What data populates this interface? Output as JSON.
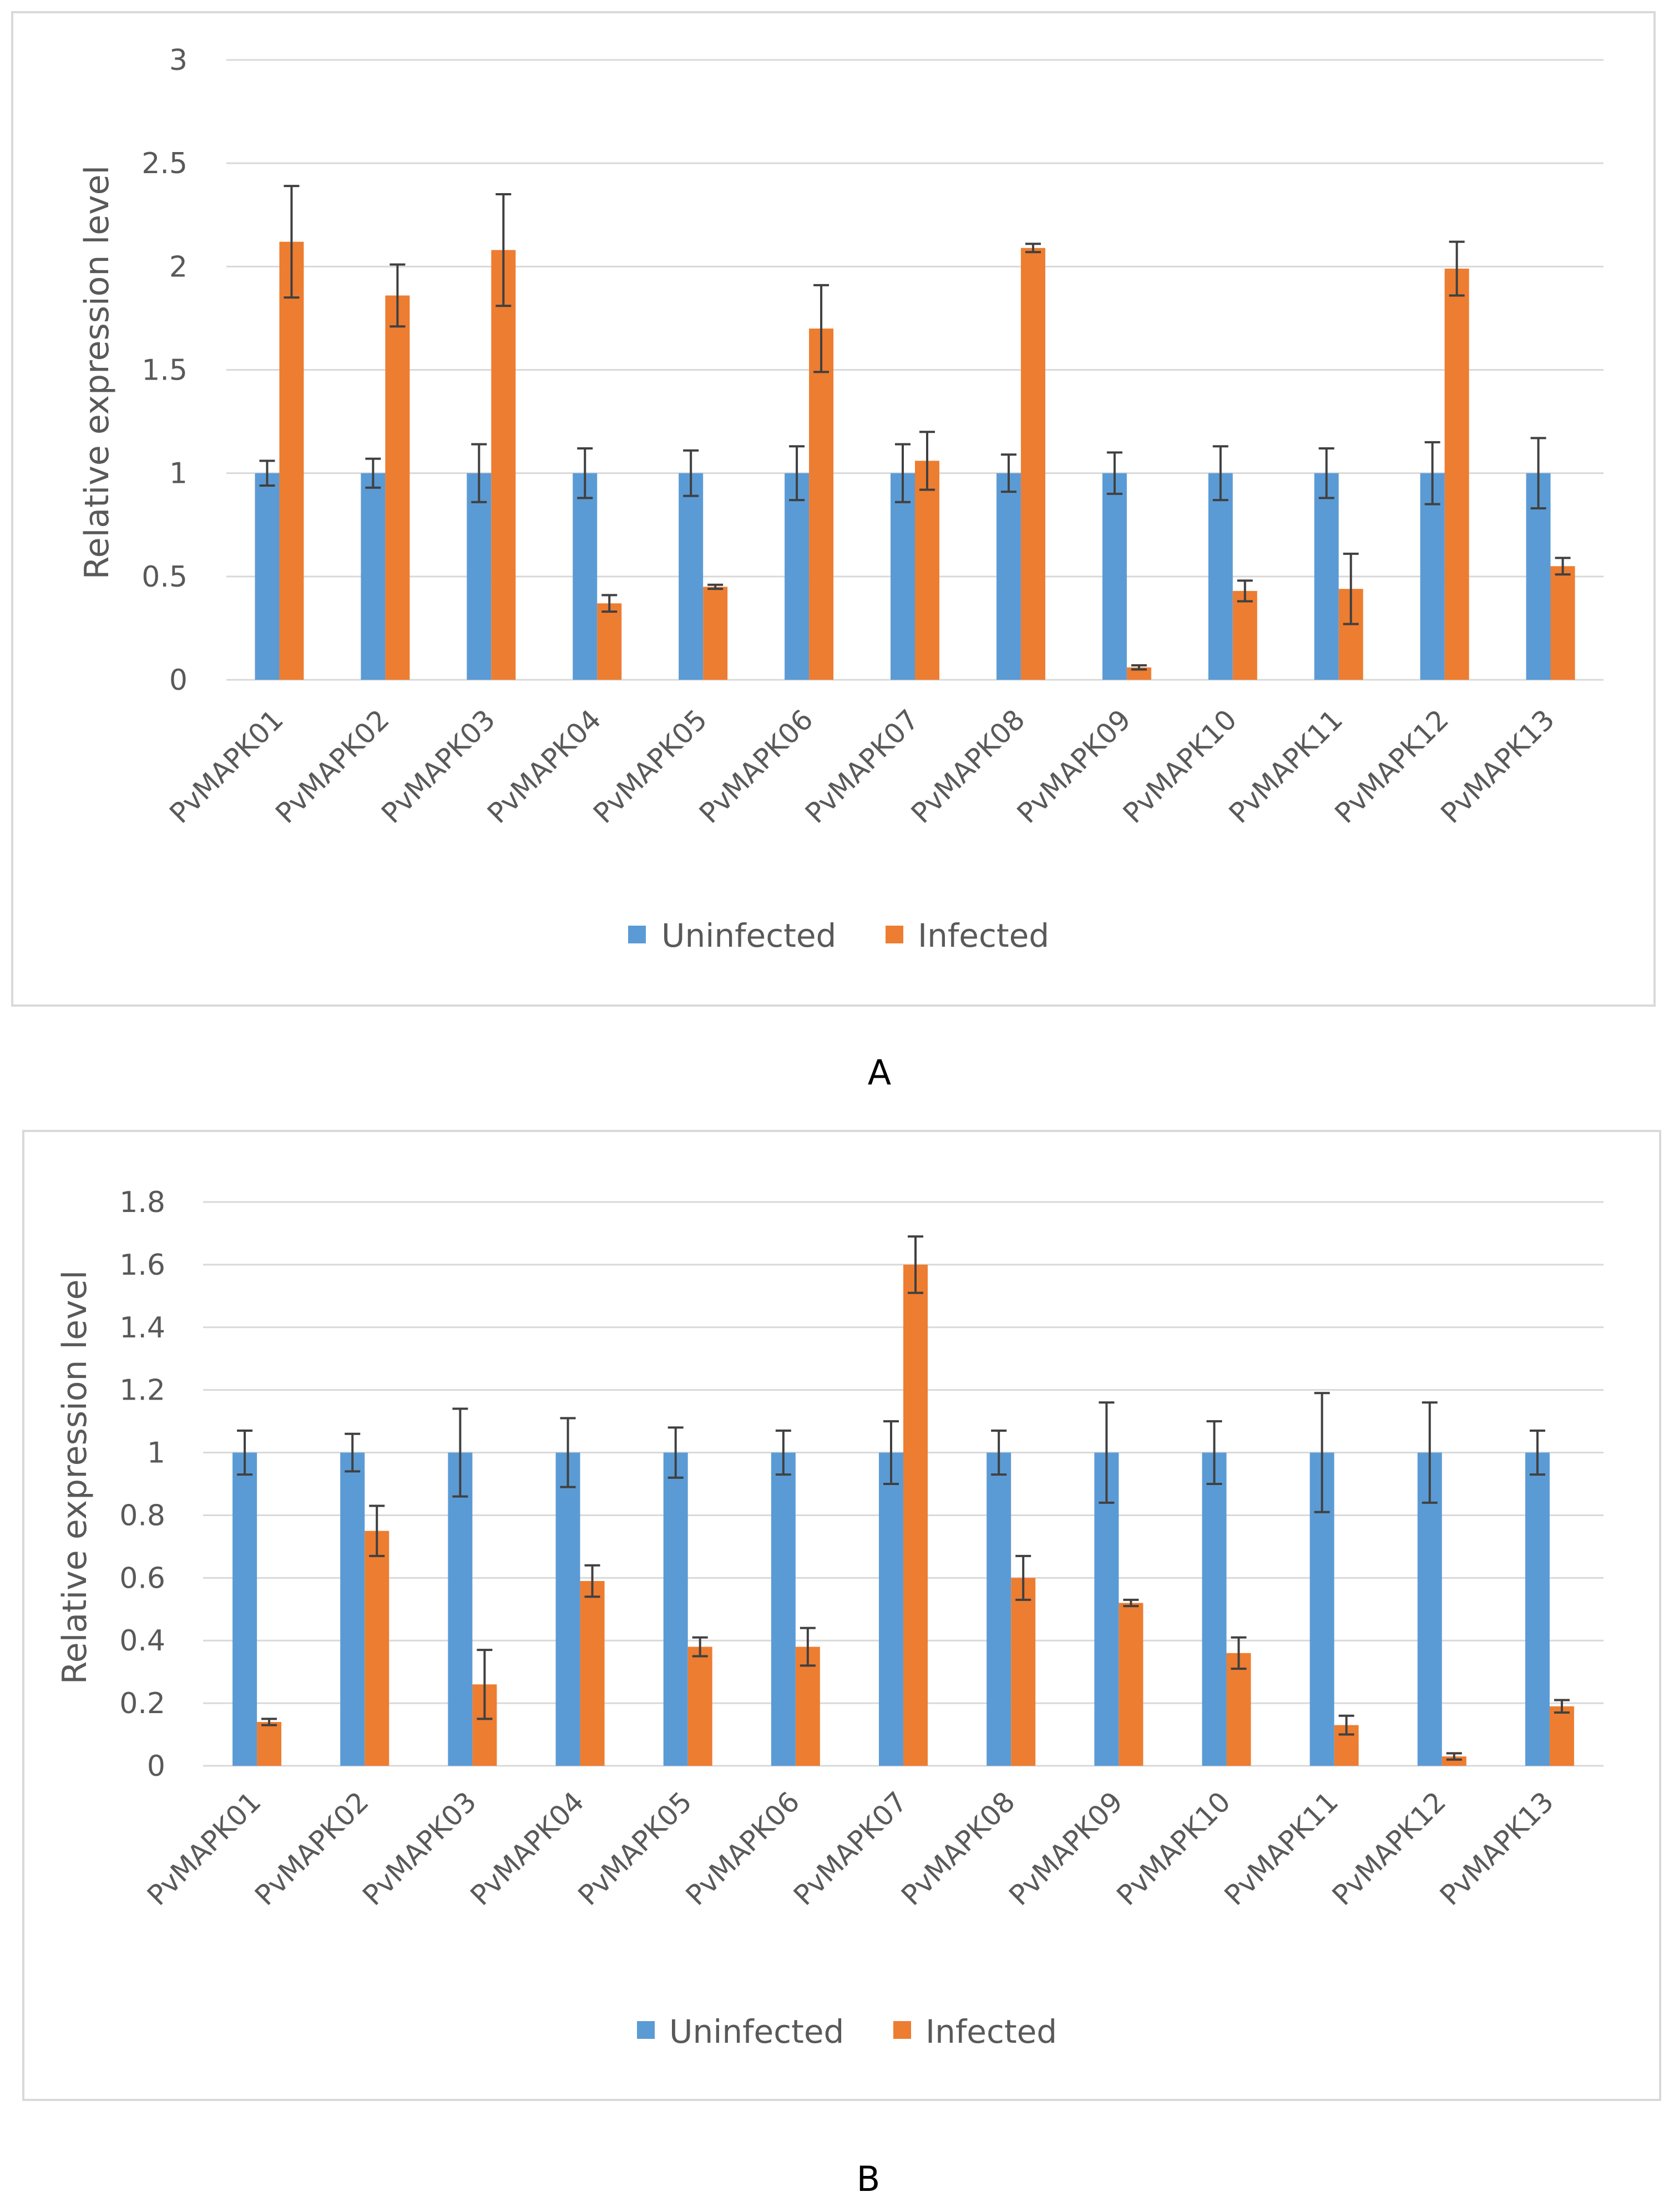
{
  "chart_data": [
    {
      "panel": "A",
      "type": "bar",
      "ylabel": "Relative expression level",
      "xlabel": "",
      "ylim": [
        0,
        3
      ],
      "yticks": [
        "0",
        "0.5",
        "1",
        "1.5",
        "2",
        "2.5",
        "3"
      ],
      "grid": true,
      "legend_position": "bottom",
      "categories": [
        "PvMAPK01",
        "PvMAPK02",
        "PvMAPK03",
        "PvMAPK04",
        "PvMAPK05",
        "PvMAPK06",
        "PvMAPK07",
        "PvMAPK08",
        "PvMAPK09",
        "PvMAPK10",
        "PvMAPK11",
        "PvMAPK12",
        "PvMAPK13"
      ],
      "series": [
        {
          "name": "Uninfected",
          "color": "#5B9BD5",
          "values": [
            1,
            1,
            1,
            1,
            1,
            1,
            1,
            1,
            1,
            1,
            1,
            1,
            1
          ],
          "errors": [
            0.06,
            0.07,
            0.14,
            0.12,
            0.11,
            0.13,
            0.14,
            0.09,
            0.1,
            0.13,
            0.12,
            0.15,
            0.17
          ]
        },
        {
          "name": "Infected",
          "color": "#ED7D31",
          "values": [
            2.12,
            1.86,
            2.08,
            0.37,
            0.45,
            1.7,
            1.06,
            2.09,
            0.06,
            0.43,
            0.44,
            1.99,
            0.55
          ],
          "errors": [
            0.27,
            0.15,
            0.27,
            0.04,
            0.01,
            0.21,
            0.14,
            0.02,
            0.01,
            0.05,
            0.17,
            0.13,
            0.04
          ]
        }
      ]
    },
    {
      "panel": "B",
      "type": "bar",
      "ylabel": "Relative expression level",
      "xlabel": "",
      "ylim": [
        0,
        1.8
      ],
      "yticks": [
        "0",
        "0.2",
        "0.4",
        "0.6",
        "0.8",
        "1",
        "1.2",
        "1.4",
        "1.6",
        "1.8"
      ],
      "grid": true,
      "legend_position": "bottom",
      "categories": [
        "PvMAPK01",
        "PvMAPK02",
        "PvMAPK03",
        "PvMAPK04",
        "PvMAPK05",
        "PvMAPK06",
        "PvMAPK07",
        "PvMAPK08",
        "PvMAPK09",
        "PvMAPK10",
        "PvMAPK11",
        "PvMAPK12",
        "PvMAPK13"
      ],
      "series": [
        {
          "name": "Uninfected",
          "color": "#5B9BD5",
          "values": [
            1,
            1,
            1,
            1,
            1,
            1,
            1,
            1,
            1,
            1,
            1,
            1,
            1
          ],
          "errors": [
            0.07,
            0.06,
            0.14,
            0.11,
            0.08,
            0.07,
            0.1,
            0.07,
            0.16,
            0.1,
            0.19,
            0.16,
            0.07
          ]
        },
        {
          "name": "Infected",
          "color": "#ED7D31",
          "values": [
            0.14,
            0.75,
            0.26,
            0.59,
            0.38,
            0.38,
            1.6,
            0.6,
            0.52,
            0.36,
            0.13,
            0.03,
            0.19
          ],
          "errors": [
            0.01,
            0.08,
            0.11,
            0.05,
            0.03,
            0.06,
            0.09,
            0.07,
            0.01,
            0.05,
            0.03,
            0.01,
            0.02
          ]
        }
      ]
    }
  ]
}
